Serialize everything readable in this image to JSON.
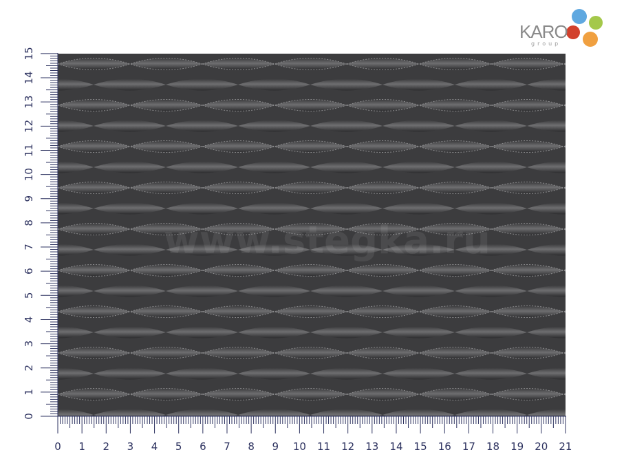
{
  "logo": {
    "name": "KARO",
    "sub": "group"
  },
  "watermark": "www.stegka.ru",
  "ruler": {
    "unit": "cm",
    "x_labels": [
      "0",
      "1",
      "2",
      "3",
      "4",
      "5",
      "6",
      "7",
      "8",
      "9",
      "10",
      "11",
      "12",
      "13",
      "14",
      "15",
      "16",
      "17",
      "18",
      "19",
      "20",
      "21"
    ],
    "y_labels": [
      "0",
      "1",
      "2",
      "3",
      "4",
      "5",
      "6",
      "7",
      "8",
      "9",
      "10",
      "11",
      "12",
      "13",
      "14",
      "15"
    ],
    "color": "#2e3360"
  },
  "fabric": {
    "color": "#4a4a4c",
    "pattern": "quilted-wave-diamond"
  }
}
